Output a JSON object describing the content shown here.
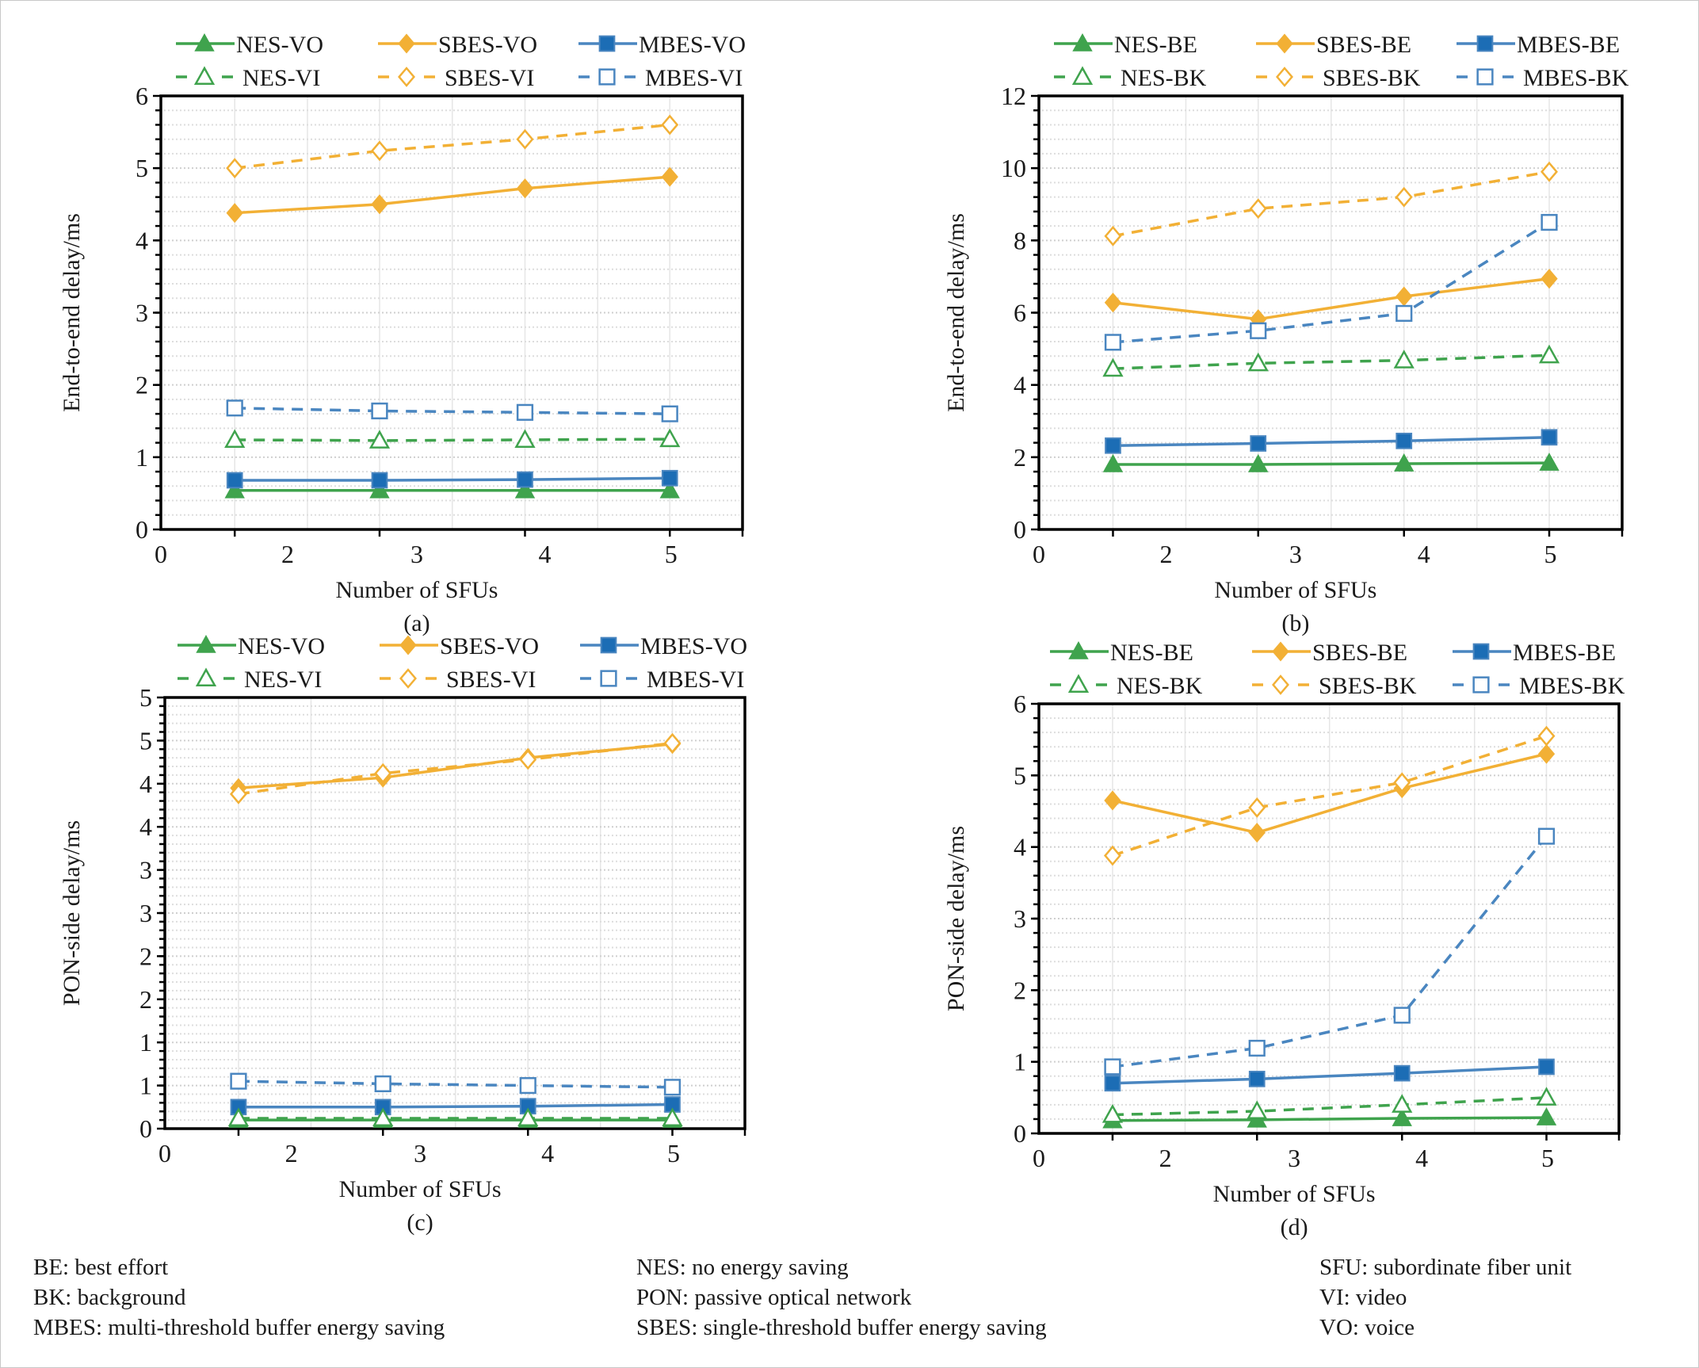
{
  "colors": {
    "NES": "#3fa34d",
    "SBES": "#f2b035",
    "MBES": "#4a86c0",
    "MBES_fill": "#1c6db5",
    "NES_fill": "#3fa34d"
  },
  "chart_data": [
    {
      "id": "a",
      "type": "line",
      "caption": "(a)",
      "xlabel": "Number of SFUs",
      "ylabel": "End-to-end delay/ms",
      "x_tick_labels": [
        "0",
        "2",
        "3",
        "4",
        "5"
      ],
      "categories": [
        "2",
        "3",
        "4",
        "5"
      ],
      "ylim": [
        0,
        6
      ],
      "y_ticks": [
        0,
        1,
        2,
        3,
        4,
        5,
        6
      ],
      "y_tick_labels": [
        "0",
        "1",
        "2",
        "3",
        "4",
        "5",
        "6"
      ],
      "y_minor_step": 0.2,
      "grid": true,
      "legend_placement": "top",
      "series": [
        {
          "name": "NES-VO",
          "scheme": "NES",
          "style": "solid",
          "marker": "triangle-filled",
          "values": [
            0.54,
            0.54,
            0.54,
            0.54
          ]
        },
        {
          "name": "SBES-VO",
          "scheme": "SBES",
          "style": "solid",
          "marker": "diamond-filled",
          "values": [
            4.38,
            4.5,
            4.72,
            4.88
          ]
        },
        {
          "name": "MBES-VO",
          "scheme": "MBES",
          "style": "solid",
          "marker": "square-filled",
          "values": [
            0.68,
            0.68,
            0.69,
            0.71
          ]
        },
        {
          "name": "NES-VI",
          "scheme": "NES",
          "style": "dashed",
          "marker": "triangle-open",
          "values": [
            1.24,
            1.23,
            1.24,
            1.25
          ]
        },
        {
          "name": "SBES-VI",
          "scheme": "SBES",
          "style": "dashed",
          "marker": "diamond-open",
          "values": [
            5.0,
            5.24,
            5.4,
            5.6
          ]
        },
        {
          "name": "MBES-VI",
          "scheme": "MBES",
          "style": "dashed",
          "marker": "square-open",
          "values": [
            1.68,
            1.64,
            1.62,
            1.6
          ]
        }
      ]
    },
    {
      "id": "b",
      "type": "line",
      "caption": "(b)",
      "xlabel": "Number of SFUs",
      "ylabel": "End-to-end delay/ms",
      "x_tick_labels": [
        "0",
        "2",
        "3",
        "4",
        "5"
      ],
      "categories": [
        "2",
        "3",
        "4",
        "5"
      ],
      "ylim": [
        0,
        12
      ],
      "y_ticks": [
        0,
        2,
        4,
        6,
        8,
        10,
        12
      ],
      "y_tick_labels": [
        "0",
        "2",
        "4",
        "6",
        "8",
        "10",
        "12"
      ],
      "y_minor_step": 0.4,
      "grid": true,
      "legend_placement": "top",
      "series": [
        {
          "name": "NES-BE",
          "scheme": "NES",
          "style": "solid",
          "marker": "triangle-filled",
          "values": [
            1.8,
            1.8,
            1.82,
            1.84
          ]
        },
        {
          "name": "SBES-BE",
          "scheme": "SBES",
          "style": "solid",
          "marker": "diamond-filled",
          "values": [
            6.28,
            5.82,
            6.45,
            6.94
          ]
        },
        {
          "name": "MBES-BE",
          "scheme": "MBES",
          "style": "solid",
          "marker": "square-filled",
          "values": [
            2.32,
            2.38,
            2.45,
            2.55
          ]
        },
        {
          "name": "NES-BK",
          "scheme": "NES",
          "style": "dashed",
          "marker": "triangle-open",
          "values": [
            4.45,
            4.6,
            4.68,
            4.82
          ]
        },
        {
          "name": "SBES-BK",
          "scheme": "SBES",
          "style": "dashed",
          "marker": "diamond-open",
          "values": [
            8.12,
            8.88,
            9.2,
            9.9
          ]
        },
        {
          "name": "MBES-BK",
          "scheme": "MBES",
          "style": "dashed",
          "marker": "square-open",
          "values": [
            5.18,
            5.5,
            5.98,
            8.5
          ]
        }
      ]
    },
    {
      "id": "c",
      "type": "line",
      "caption": "(c)",
      "xlabel": "Number of SFUs",
      "ylabel": "PON-side delay/ms",
      "x_tick_labels": [
        "0",
        "2",
        "3",
        "4",
        "5"
      ],
      "categories": [
        "2",
        "3",
        "4",
        "5"
      ],
      "ylim": [
        0,
        5
      ],
      "y_ticks": [
        0,
        0.5,
        1,
        1.5,
        2,
        2.5,
        3,
        3.5,
        4,
        4.5,
        5
      ],
      "y_tick_labels": [
        "0",
        "1",
        "1",
        "2",
        "2",
        "3",
        "3",
        "4",
        "4",
        "5",
        "5"
      ],
      "y_minor_step": 0.1,
      "grid": true,
      "legend_placement": "top",
      "series": [
        {
          "name": "NES-VO",
          "scheme": "NES",
          "style": "solid",
          "marker": "triangle-filled",
          "values": [
            0.1,
            0.1,
            0.1,
            0.1
          ]
        },
        {
          "name": "SBES-VO",
          "scheme": "SBES",
          "style": "solid",
          "marker": "diamond-filled",
          "values": [
            3.95,
            4.07,
            4.3,
            4.46
          ]
        },
        {
          "name": "MBES-VO",
          "scheme": "MBES",
          "style": "solid",
          "marker": "square-filled",
          "values": [
            0.25,
            0.25,
            0.26,
            0.28
          ]
        },
        {
          "name": "NES-VI",
          "scheme": "NES",
          "style": "dashed",
          "marker": "triangle-open",
          "values": [
            0.12,
            0.12,
            0.12,
            0.12
          ]
        },
        {
          "name": "SBES-VI",
          "scheme": "SBES",
          "style": "dashed",
          "marker": "diamond-open",
          "values": [
            3.88,
            4.12,
            4.28,
            4.47
          ]
        },
        {
          "name": "MBES-VI",
          "scheme": "MBES",
          "style": "dashed",
          "marker": "square-open",
          "values": [
            0.55,
            0.52,
            0.5,
            0.48
          ]
        }
      ]
    },
    {
      "id": "d",
      "type": "line",
      "caption": "(d)",
      "xlabel": "Number of SFUs",
      "ylabel": "PON-side delay/ms",
      "x_tick_labels": [
        "0",
        "2",
        "3",
        "4",
        "5"
      ],
      "categories": [
        "2",
        "3",
        "4",
        "5"
      ],
      "ylim": [
        0,
        6
      ],
      "y_ticks": [
        0,
        1,
        2,
        3,
        4,
        5,
        6
      ],
      "y_tick_labels": [
        "0",
        "1",
        "2",
        "3",
        "4",
        "5",
        "6"
      ],
      "y_minor_step": 0.2,
      "grid": true,
      "legend_placement": "top",
      "series": [
        {
          "name": "NES-BE",
          "scheme": "NES",
          "style": "solid",
          "marker": "triangle-filled",
          "values": [
            0.18,
            0.19,
            0.21,
            0.22
          ]
        },
        {
          "name": "SBES-BE",
          "scheme": "SBES",
          "style": "solid",
          "marker": "diamond-filled",
          "values": [
            4.65,
            4.2,
            4.82,
            5.3
          ]
        },
        {
          "name": "MBES-BE",
          "scheme": "MBES",
          "style": "solid",
          "marker": "square-filled",
          "values": [
            0.7,
            0.76,
            0.84,
            0.93
          ]
        },
        {
          "name": "NES-BK",
          "scheme": "NES",
          "style": "dashed",
          "marker": "triangle-open",
          "values": [
            0.26,
            0.31,
            0.4,
            0.5
          ]
        },
        {
          "name": "SBES-BK",
          "scheme": "SBES",
          "style": "dashed",
          "marker": "diamond-open",
          "values": [
            3.88,
            4.55,
            4.9,
            5.55
          ]
        },
        {
          "name": "MBES-BK",
          "scheme": "MBES",
          "style": "dashed",
          "marker": "square-open",
          "values": [
            0.93,
            1.19,
            1.65,
            4.15
          ]
        }
      ]
    }
  ],
  "footnotes": {
    "col1": [
      "BE: best effort",
      "BK: background",
      "MBES: multi-threshold buffer energy saving"
    ],
    "col2": [
      "NES: no energy saving",
      "PON: passive optical network",
      "SBES: single-threshold buffer energy saving"
    ],
    "col3": [
      "SFU: subordinate fiber unit",
      "VI: video",
      "VO: voice"
    ]
  }
}
